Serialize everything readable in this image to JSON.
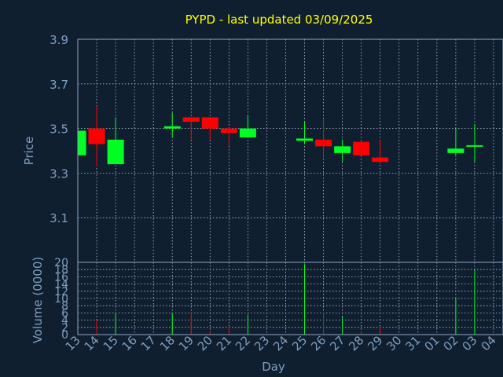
{
  "chart_data": {
    "type": "candlestick",
    "title": "PYPD - last updated 03/09/2025",
    "price_ylabel": "Price",
    "volume_ylabel": "Volume (0000)",
    "xlabel": "Day",
    "price_ylim": [
      2.9,
      3.9
    ],
    "price_yticks": [
      "3.9",
      "3.7",
      "3.5",
      "3.3",
      "3.1"
    ],
    "volume_ylim": [
      0,
      20
    ],
    "volume_yticks": [
      "20",
      "18",
      "16",
      "14",
      "12",
      "10",
      "8",
      "6",
      "4",
      "2",
      "0"
    ],
    "x_ticks": [
      "13",
      "14",
      "15",
      "16",
      "17",
      "18",
      "19",
      "20",
      "21",
      "22",
      "23",
      "24",
      "25",
      "26",
      "27",
      "28",
      "29",
      "30",
      "31",
      "01",
      "02",
      "03",
      "04"
    ],
    "grid": true,
    "colors": {
      "background": "#0f1f30",
      "axis_text": "#7f9fbf",
      "title": "#ffff00",
      "frame": "#8fa6c2",
      "grid": "#b8c4d0",
      "up": "#00ff22",
      "down": "#ff0000"
    },
    "candles": [
      {
        "day": "13",
        "open": 3.38,
        "high": 3.49,
        "low": 3.38,
        "close": 3.49,
        "volume": 0
      },
      {
        "day": "14",
        "open": 3.5,
        "high": 3.6,
        "low": 3.33,
        "close": 3.43,
        "volume": 4
      },
      {
        "day": "15",
        "open": 3.34,
        "high": 3.55,
        "low": 3.34,
        "close": 3.45,
        "volume": 6
      },
      {
        "day": "18",
        "open": 3.5,
        "high": 3.57,
        "low": 3.46,
        "close": 3.51,
        "volume": 6
      },
      {
        "day": "19",
        "open": 3.55,
        "high": 3.55,
        "low": 3.45,
        "close": 3.53,
        "volume": 6
      },
      {
        "day": "20",
        "open": 3.55,
        "high": 3.55,
        "low": 3.45,
        "close": 3.5,
        "volume": 1
      },
      {
        "day": "21",
        "open": 3.5,
        "high": 3.51,
        "low": 3.42,
        "close": 3.48,
        "volume": 2
      },
      {
        "day": "22",
        "open": 3.46,
        "high": 3.56,
        "low": 3.46,
        "close": 3.5,
        "volume": 5.5
      },
      {
        "day": "25",
        "open": 3.445,
        "high": 3.53,
        "low": 3.43,
        "close": 3.455,
        "volume": 19.5
      },
      {
        "day": "26",
        "open": 3.45,
        "high": 3.54,
        "low": 3.37,
        "close": 3.42,
        "volume": 6
      },
      {
        "day": "27",
        "open": 3.39,
        "high": 3.45,
        "low": 3.35,
        "close": 3.42,
        "volume": 5
      },
      {
        "day": "28",
        "open": 3.44,
        "high": 3.44,
        "low": 3.38,
        "close": 3.38,
        "volume": 1
      },
      {
        "day": "29",
        "open": 3.37,
        "high": 3.45,
        "low": 3.34,
        "close": 3.35,
        "volume": 2
      },
      {
        "day": "02",
        "open": 3.39,
        "high": 3.5,
        "low": 3.38,
        "close": 3.41,
        "volume": 10
      },
      {
        "day": "03",
        "open": 3.42,
        "high": 3.52,
        "low": 3.35,
        "close": 3.425,
        "volume": 18
      }
    ]
  }
}
